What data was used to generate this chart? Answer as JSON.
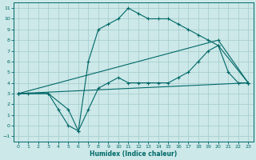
{
  "xlabel": "Humidex (Indice chaleur)",
  "bg_color": "#cce8e8",
  "grid_color": "#aacece",
  "line_color": "#006868",
  "xlim": [
    -0.5,
    23.5
  ],
  "ylim": [
    -1.5,
    11.5
  ],
  "xticks": [
    0,
    1,
    2,
    3,
    4,
    5,
    6,
    7,
    8,
    9,
    10,
    11,
    12,
    13,
    14,
    15,
    16,
    17,
    18,
    19,
    20,
    21,
    22,
    23
  ],
  "yticks": [
    -1,
    0,
    1,
    2,
    3,
    4,
    5,
    6,
    7,
    8,
    9,
    10,
    11
  ],
  "line1_x": [
    0,
    1,
    3,
    4,
    5,
    6,
    7,
    8,
    9,
    10,
    11,
    12,
    13,
    14,
    15,
    16,
    17,
    18,
    19,
    20,
    21,
    22,
    23
  ],
  "line1_y": [
    3,
    3,
    3,
    1.5,
    0,
    -0.5,
    6,
    9,
    9.5,
    10,
    11,
    10.5,
    10,
    10,
    10,
    9.5,
    9,
    8.5,
    8,
    7.5,
    5,
    4,
    4
  ],
  "line2_x": [
    0,
    3,
    5,
    6,
    7,
    8,
    9,
    10,
    11,
    12,
    13,
    14,
    15,
    16,
    17,
    18,
    19,
    20,
    23
  ],
  "line2_y": [
    3,
    3,
    1.5,
    -0.5,
    1.5,
    3.5,
    4,
    4.5,
    4,
    4,
    4,
    4,
    4,
    4.5,
    5,
    6,
    7,
    7.5,
    4
  ],
  "line3_x": [
    0,
    23
  ],
  "line3_y": [
    3,
    4
  ],
  "line4_x": [
    0,
    20,
    23
  ],
  "line4_y": [
    3,
    8,
    4
  ]
}
